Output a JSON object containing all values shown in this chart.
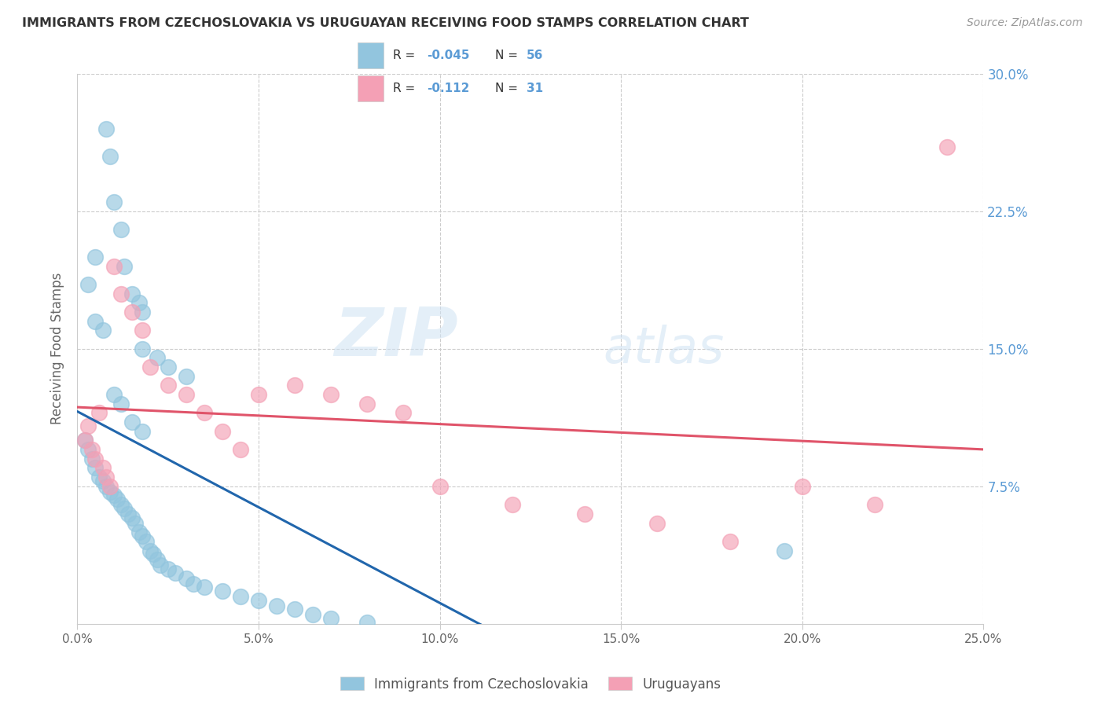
{
  "title": "IMMIGRANTS FROM CZECHOSLOVAKIA VS URUGUAYAN RECEIVING FOOD STAMPS CORRELATION CHART",
  "source": "Source: ZipAtlas.com",
  "xlabel_bottom": "Immigrants from Czechoslovakia",
  "xlabel_bottom2": "Uruguayans",
  "ylabel": "Receiving Food Stamps",
  "xlim": [
    0.0,
    0.25
  ],
  "ylim": [
    0.0,
    0.3
  ],
  "xticks": [
    0.0,
    0.05,
    0.1,
    0.15,
    0.2,
    0.25
  ],
  "yticks_right": [
    0.075,
    0.15,
    0.225,
    0.3
  ],
  "ytick_labels_right": [
    "7.5%",
    "15.0%",
    "22.5%",
    "30.0%"
  ],
  "xtick_labels": [
    "0.0%",
    "5.0%",
    "10.0%",
    "15.0%",
    "20.0%",
    "25.0%"
  ],
  "blue_R": "-0.045",
  "blue_N": "56",
  "pink_R": "-0.112",
  "pink_N": "31",
  "blue_color": "#92c5de",
  "pink_color": "#f4a0b5",
  "blue_line_color": "#2166ac",
  "pink_line_color": "#e0546a",
  "right_axis_color": "#5b9bd5",
  "watermark_zip": "ZIP",
  "watermark_atlas": "atlas",
  "blue_scatter_x": [
    0.008,
    0.009,
    0.01,
    0.012,
    0.013,
    0.015,
    0.017,
    0.018,
    0.005,
    0.007,
    0.018,
    0.022,
    0.025,
    0.03,
    0.01,
    0.012,
    0.015,
    0.018,
    0.002,
    0.003,
    0.004,
    0.005,
    0.006,
    0.007,
    0.008,
    0.009,
    0.01,
    0.011,
    0.012,
    0.013,
    0.014,
    0.015,
    0.016,
    0.017,
    0.018,
    0.019,
    0.02,
    0.021,
    0.022,
    0.023,
    0.025,
    0.027,
    0.03,
    0.032,
    0.035,
    0.04,
    0.045,
    0.05,
    0.055,
    0.06,
    0.065,
    0.07,
    0.08,
    0.195,
    0.005,
    0.003
  ],
  "blue_scatter_y": [
    0.27,
    0.255,
    0.23,
    0.215,
    0.195,
    0.18,
    0.175,
    0.17,
    0.165,
    0.16,
    0.15,
    0.145,
    0.14,
    0.135,
    0.125,
    0.12,
    0.11,
    0.105,
    0.1,
    0.095,
    0.09,
    0.085,
    0.08,
    0.078,
    0.075,
    0.072,
    0.07,
    0.068,
    0.065,
    0.063,
    0.06,
    0.058,
    0.055,
    0.05,
    0.048,
    0.045,
    0.04,
    0.038,
    0.035,
    0.032,
    0.03,
    0.028,
    0.025,
    0.022,
    0.02,
    0.018,
    0.015,
    0.013,
    0.01,
    0.008,
    0.005,
    0.003,
    0.001,
    0.04,
    0.2,
    0.185
  ],
  "pink_scatter_x": [
    0.002,
    0.003,
    0.004,
    0.005,
    0.006,
    0.007,
    0.008,
    0.009,
    0.01,
    0.012,
    0.015,
    0.018,
    0.02,
    0.025,
    0.03,
    0.035,
    0.04,
    0.045,
    0.05,
    0.06,
    0.07,
    0.08,
    0.09,
    0.1,
    0.12,
    0.14,
    0.16,
    0.18,
    0.2,
    0.22,
    0.24
  ],
  "pink_scatter_y": [
    0.1,
    0.108,
    0.095,
    0.09,
    0.115,
    0.085,
    0.08,
    0.075,
    0.195,
    0.18,
    0.17,
    0.16,
    0.14,
    0.13,
    0.125,
    0.115,
    0.105,
    0.095,
    0.125,
    0.13,
    0.125,
    0.12,
    0.115,
    0.075,
    0.065,
    0.06,
    0.055,
    0.045,
    0.075,
    0.065,
    0.26
  ]
}
